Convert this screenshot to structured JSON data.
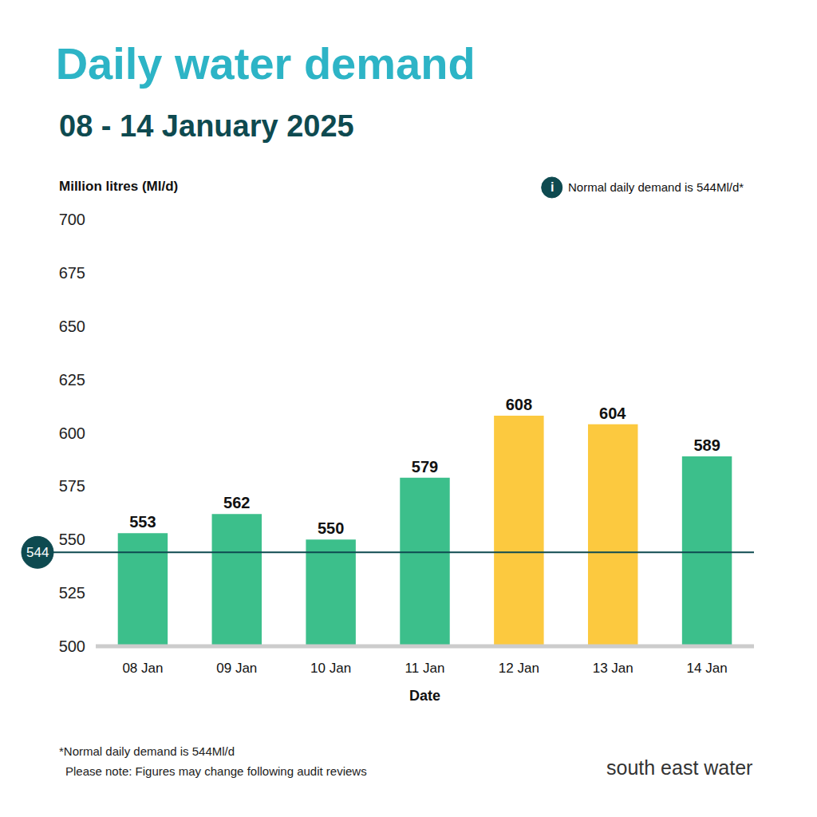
{
  "chart_data": {
    "type": "bar",
    "title": "Daily water demand",
    "subtitle": "08 - 14 January 2025",
    "y_label": "Million litres (Ml/d)",
    "x_label": "Date",
    "categories": [
      "08 Jan",
      "09 Jan",
      "10 Jan",
      "11 Jan",
      "12 Jan",
      "13 Jan",
      "14 Jan"
    ],
    "values": [
      553,
      562,
      550,
      579,
      608,
      604,
      589
    ],
    "colors": [
      "#3cbf8b",
      "#3cbf8b",
      "#3cbf8b",
      "#3cbf8b",
      "#fcc93f",
      "#fcc93f",
      "#3cbf8b"
    ],
    "ylim": [
      500,
      700
    ],
    "yticks": [
      500,
      525,
      550,
      575,
      600,
      625,
      650,
      675,
      700
    ],
    "grid": false,
    "data_labels": true,
    "reference_line": {
      "value": 544,
      "label": "544"
    },
    "annotations": [
      {
        "icon": "i",
        "text": "Normal daily demand is 544Ml/d*"
      }
    ],
    "footnotes": [
      "*Normal daily demand is 544Ml/d",
      "Please note: Figures may change following audit reviews"
    ],
    "source": "south east water"
  }
}
